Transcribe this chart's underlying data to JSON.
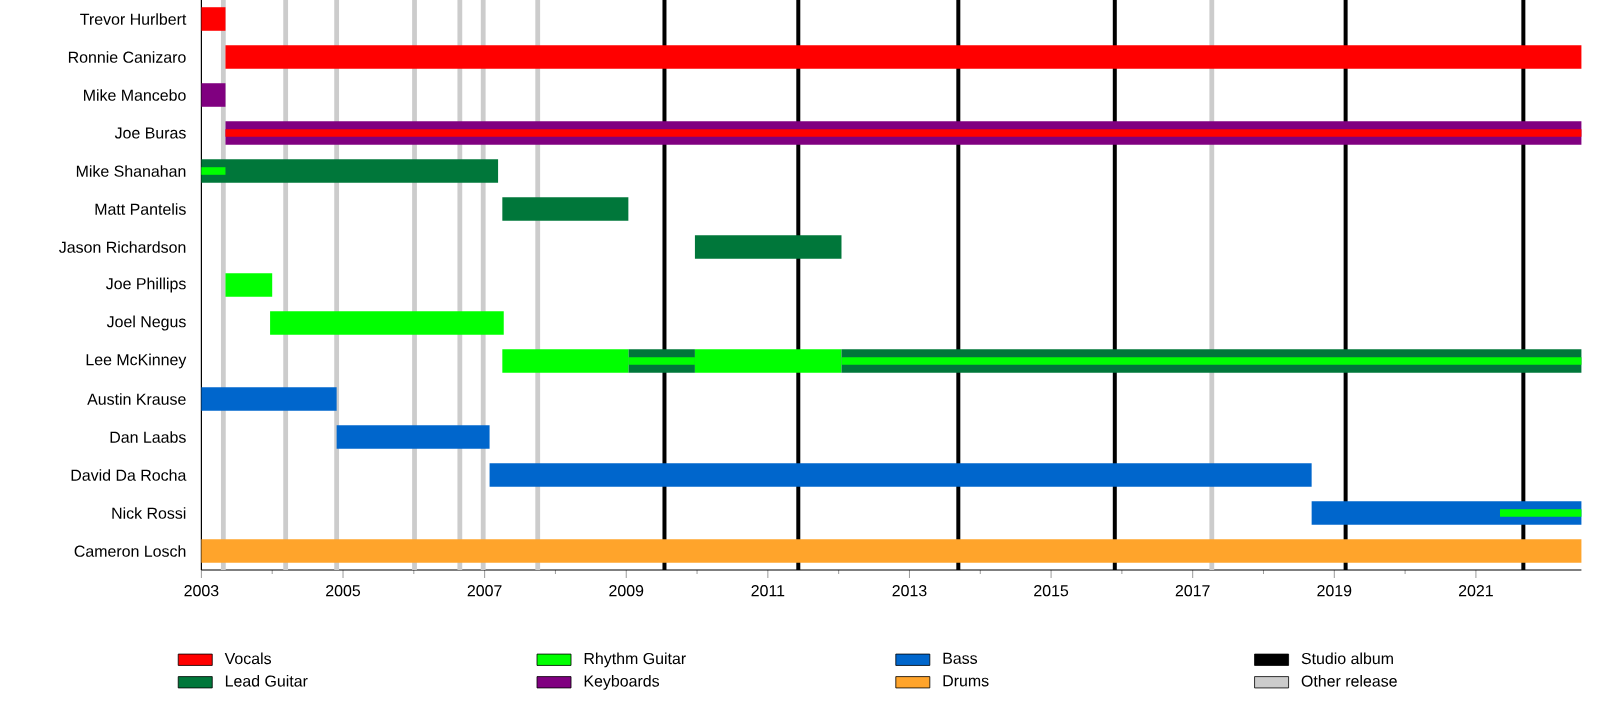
{
  "chart_data": {
    "type": "bar",
    "orientation": "horizontal",
    "legend": "bottom",
    "categories": [
      "Trevor Hurlbert",
      "Ronnie Canizaro",
      "Mike Mancebo",
      "Joe Buras",
      "Mike Shanahan",
      "Matt Pantelis",
      "Jason Richardson",
      "Joe Phillips",
      "Joel Negus",
      "Lee McKinney",
      "Austin Krause",
      "Dan Laabs",
      "David Da Rocha",
      "Nick Rossi",
      "Cameron Losch"
    ],
    "xlim": [
      2003,
      2022.49
    ],
    "xticks": [
      2003,
      2005,
      2007,
      2009,
      2011,
      2013,
      2015,
      2017,
      2019,
      2021
    ],
    "series": [
      {
        "name": "Vocals",
        "color": "#ff0000",
        "base": [
          2003,
          2003.34,
          null,
          null,
          null,
          null,
          null,
          null,
          null,
          null,
          null,
          null,
          null,
          null,
          null
        ],
        "values": [
          0.34,
          19.15,
          null,
          null,
          null,
          null,
          null,
          null,
          null,
          null,
          null,
          null,
          null,
          null,
          null
        ]
      },
      {
        "name": "Lead Guitar",
        "color": "#00773a",
        "base": [
          null,
          null,
          null,
          null,
          2003,
          2007.25,
          2009.97,
          null,
          null,
          2009.03,
          null,
          null,
          null,
          null,
          null
        ],
        "values": [
          null,
          null,
          null,
          null,
          4.19,
          1.78,
          2.07,
          null,
          null,
          0.94,
          null,
          null,
          null,
          null,
          null
        ]
      },
      {
        "name": "Rhythm Guitar",
        "color": "#00ff00",
        "base": [
          null,
          null,
          null,
          null,
          null,
          null,
          null,
          2003.34,
          2003.97,
          2007.25,
          null,
          null,
          null,
          null,
          null
        ],
        "values": [
          null,
          null,
          null,
          null,
          null,
          null,
          null,
          0.66,
          3.3,
          1.78,
          null,
          null,
          null,
          null,
          null
        ]
      },
      {
        "name": "Keyboards",
        "color": "#800080",
        "base": [
          null,
          null,
          2003,
          2003.34,
          null,
          null,
          null,
          null,
          null,
          null,
          null,
          null,
          null,
          null,
          null
        ],
        "values": [
          null,
          null,
          0.34,
          19.15,
          null,
          null,
          null,
          null,
          null,
          null,
          null,
          null,
          null,
          null,
          null
        ]
      },
      {
        "name": "Bass",
        "color": "#0066cc",
        "base": [
          null,
          null,
          null,
          null,
          null,
          null,
          null,
          null,
          null,
          null,
          2003,
          2004.91,
          2007.07,
          2018.68,
          null
        ],
        "values": [
          null,
          null,
          null,
          null,
          null,
          null,
          null,
          null,
          null,
          null,
          1.91,
          2.16,
          11.61,
          3.81,
          null
        ]
      },
      {
        "name": "Drums",
        "color": "#ffa42b",
        "base": [
          null,
          null,
          null,
          null,
          null,
          null,
          null,
          null,
          null,
          null,
          null,
          null,
          null,
          null,
          2003
        ],
        "values": [
          null,
          null,
          null,
          null,
          null,
          null,
          null,
          null,
          null,
          null,
          null,
          null,
          null,
          null,
          19.49
        ]
      },
      {
        "color": "#00ff00",
        "base": [
          null,
          null,
          null,
          null,
          null,
          null,
          null,
          null,
          null,
          2009.97,
          null,
          null,
          null,
          null,
          null
        ],
        "values": [
          null,
          null,
          null,
          null,
          null,
          null,
          null,
          null,
          null,
          2.07,
          null,
          null,
          null,
          null,
          null
        ]
      },
      {
        "color": "#00773a",
        "base": [
          null,
          null,
          null,
          null,
          null,
          null,
          null,
          null,
          null,
          2012.04,
          null,
          null,
          null,
          null,
          null
        ],
        "values": [
          null,
          null,
          null,
          null,
          null,
          null,
          null,
          null,
          null,
          10.45,
          null,
          null,
          null,
          null,
          null
        ]
      },
      {
        "color": "#ff0000",
        "base": [
          null,
          null,
          null,
          2003.34,
          null,
          null,
          null,
          null,
          null,
          null,
          null,
          null,
          null,
          null,
          null
        ],
        "values": [
          null,
          null,
          null,
          19.15,
          null,
          null,
          null,
          null,
          null,
          null,
          null,
          null,
          null,
          null,
          null
        ]
      },
      {
        "color": "#00ff00",
        "base": [
          null,
          null,
          null,
          null,
          2003,
          null,
          null,
          null,
          null,
          2009.03,
          null,
          null,
          null,
          2021.34,
          null
        ],
        "values": [
          null,
          null,
          null,
          null,
          0.34,
          null,
          null,
          null,
          null,
          0.94,
          null,
          null,
          null,
          1.15,
          null
        ]
      },
      {
        "color": "#00ff00",
        "base": [
          null,
          null,
          null,
          null,
          null,
          null,
          null,
          null,
          null,
          2012.04,
          null,
          null,
          null,
          null,
          null
        ],
        "values": [
          null,
          null,
          null,
          null,
          null,
          null,
          null,
          null,
          null,
          10.45,
          null,
          null,
          null,
          null,
          null
        ]
      }
    ],
    "ref_lines": [
      {
        "axis": "x",
        "value": 2009.54,
        "label": "Studio album",
        "color": "#000000"
      },
      {
        "axis": "x",
        "value": 2011.43,
        "color": "#000000"
      },
      {
        "axis": "x",
        "value": 2013.69,
        "color": "#000000"
      },
      {
        "axis": "x",
        "value": 2015.9,
        "color": "#000000"
      },
      {
        "axis": "x",
        "value": 2019.16,
        "color": "#000000"
      },
      {
        "axis": "x",
        "value": 2021.67,
        "color": "#000000"
      },
      {
        "axis": "x",
        "value": 2003.31,
        "label": "Other release",
        "color": "#cccccc"
      },
      {
        "axis": "x",
        "value": 2004.19,
        "color": "#cccccc"
      },
      {
        "axis": "x",
        "value": 2004.91,
        "color": "#cccccc"
      },
      {
        "axis": "x",
        "value": 2006.01,
        "color": "#cccccc"
      },
      {
        "axis": "x",
        "value": 2006.65,
        "color": "#cccccc"
      },
      {
        "axis": "x",
        "value": 2006.98,
        "color": "#cccccc"
      },
      {
        "axis": "x",
        "value": 2007.75,
        "color": "#cccccc"
      },
      {
        "axis": "x",
        "value": 2017.27,
        "color": "#cccccc"
      }
    ]
  }
}
